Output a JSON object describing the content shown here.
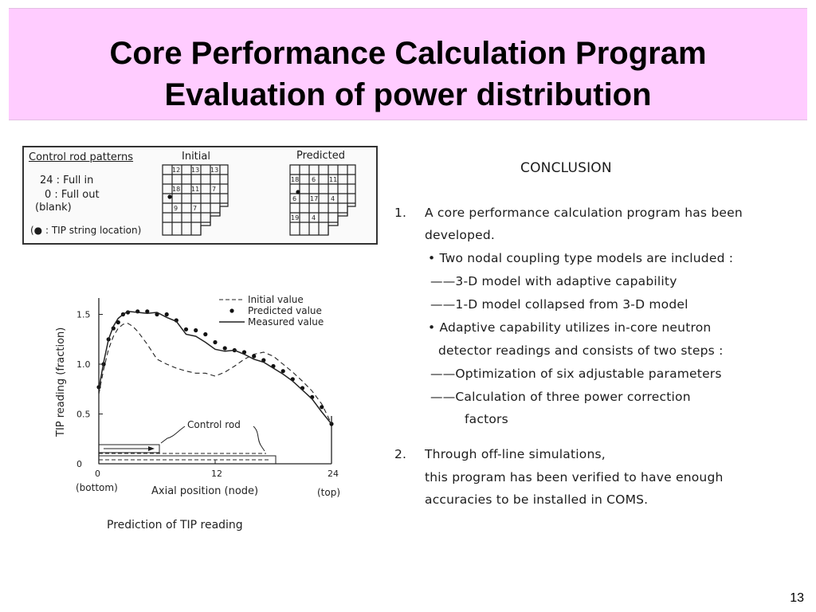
{
  "title": {
    "line1": "Core Performance Calculation Program",
    "line2": "Evaluation of power distribution"
  },
  "legend": {
    "heading": "Control rod patterns",
    "item1": "24 : Full in",
    "item2": "0 : Full out",
    "item3": "(blank)",
    "item4": "(● : TIP string location)"
  },
  "grids": {
    "initial": {
      "label": "Initial",
      "cells": [
        "12",
        "13",
        "13",
        "18",
        "11",
        "7",
        "9",
        "7"
      ]
    },
    "predicted": {
      "label": "Predicted",
      "cells": [
        "18",
        "6",
        "11",
        "6",
        "17",
        "4",
        "19",
        "4"
      ]
    }
  },
  "chart_data": {
    "type": "line",
    "title": "Prediction of TIP reading",
    "xlabel": "Axial position (node)",
    "ylabel": "TIP reading (fraction)",
    "x_ticks": [
      "0",
      "12",
      "24"
    ],
    "x_end_labels": {
      "left": "(bottom)",
      "right": "(top)"
    },
    "y_ticks": [
      "0",
      "0.5",
      "1.0",
      "1.5"
    ],
    "xlim": [
      0,
      24
    ],
    "ylim": [
      0,
      1.6
    ],
    "legend": [
      "Initial value",
      "Predicted value",
      "Measured value"
    ],
    "annotation": "Control rod",
    "series": [
      {
        "name": "Initial value",
        "style": "dashed",
        "x": [
          0,
          0.5,
          1,
          1.5,
          2,
          2.5,
          3,
          3.5,
          4,
          5,
          6,
          7,
          8,
          9,
          10,
          11,
          12,
          13,
          14,
          15,
          16,
          17,
          18,
          19,
          20,
          21,
          22,
          23,
          24
        ],
        "y": [
          0.7,
          0.95,
          1.15,
          1.28,
          1.36,
          1.4,
          1.41,
          1.38,
          1.33,
          1.2,
          1.05,
          1.0,
          0.96,
          0.93,
          0.91,
          0.91,
          0.88,
          0.92,
          0.98,
          1.05,
          1.1,
          1.12,
          1.08,
          1.0,
          0.92,
          0.83,
          0.73,
          0.6,
          0.4
        ]
      },
      {
        "name": "Predicted value",
        "style": "dots",
        "x": [
          0,
          0.5,
          1,
          1.5,
          2,
          2.5,
          3,
          4,
          5,
          6,
          7,
          8,
          9,
          10,
          11,
          12,
          13,
          14,
          15,
          16,
          17,
          18,
          19,
          20,
          21,
          22,
          23,
          24
        ],
        "y": [
          0.77,
          1.0,
          1.25,
          1.36,
          1.42,
          1.5,
          1.52,
          1.53,
          1.53,
          1.5,
          1.5,
          1.44,
          1.35,
          1.34,
          1.3,
          1.22,
          1.16,
          1.14,
          1.12,
          1.08,
          1.04,
          0.98,
          0.93,
          0.85,
          0.76,
          0.67,
          0.57,
          0.4
        ]
      },
      {
        "name": "Measured value",
        "style": "solid",
        "x": [
          0,
          0.5,
          1,
          1.5,
          2,
          2.5,
          3,
          4,
          5,
          6,
          7,
          8,
          9,
          10,
          11,
          12,
          13,
          14,
          15,
          16,
          17,
          18,
          19,
          20,
          21,
          22,
          23,
          24
        ],
        "y": [
          0.75,
          1.02,
          1.25,
          1.38,
          1.46,
          1.5,
          1.53,
          1.52,
          1.51,
          1.52,
          1.47,
          1.43,
          1.3,
          1.28,
          1.22,
          1.15,
          1.13,
          1.14,
          1.1,
          1.05,
          1.02,
          0.96,
          0.9,
          0.83,
          0.74,
          0.65,
          0.52,
          0.4
        ]
      }
    ]
  },
  "conclusion": {
    "heading": "CONCLUSION",
    "n1": "1.",
    "line1a": "A core performance calculation program has been",
    "line1b": "developed.",
    "b1": "• Two nodal coupling type models are included :",
    "d1": "——3-D model with adaptive capability",
    "d2": "——1-D model collapsed from 3-D model",
    "b2a": "• Adaptive capability utilizes in-core neutron",
    "b2b": "detector readings and consists of two steps :",
    "d3": "——Optimization of six adjustable parameters",
    "d4a": "——Calculation of three power correction",
    "d4b": "factors",
    "n2": "2.",
    "line2a": "Through off-line simulations,",
    "line2b": "this program has been verified to have enough",
    "line2c": "accuracies to be installed in COMS."
  },
  "page_number": "13"
}
